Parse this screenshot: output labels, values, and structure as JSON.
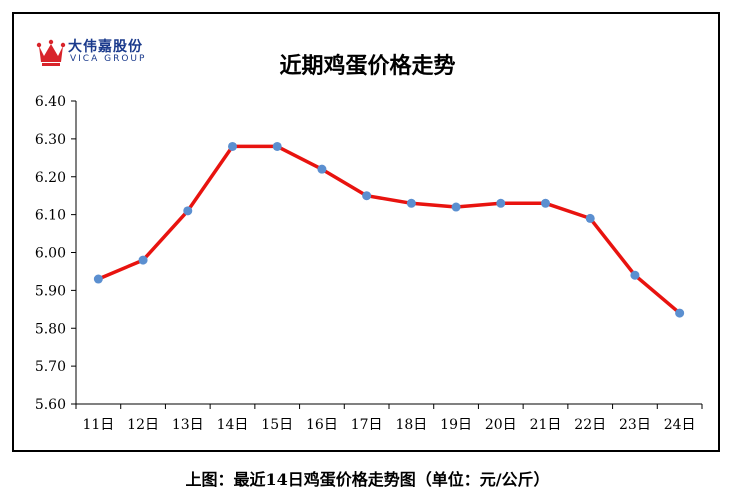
{
  "logo": {
    "name_cn": "大伟嘉股份",
    "name_en": "VICA GROUP"
  },
  "caption": "上图：最近14日鸡蛋价格走势图（单位：元/公斤）",
  "colors": {
    "line": "#e8130f",
    "marker": "#5b8fd0",
    "logo": "#1a3a8c"
  },
  "chart_data": {
    "type": "line",
    "title": "近期鸡蛋价格走势",
    "xlabel": "",
    "ylabel": "",
    "categories": [
      "11日",
      "12日",
      "13日",
      "14日",
      "15日",
      "16日",
      "17日",
      "18日",
      "19日",
      "20日",
      "21日",
      "22日",
      "23日",
      "24日"
    ],
    "series": [
      {
        "values": [
          5.93,
          5.98,
          6.11,
          6.28,
          6.28,
          6.22,
          6.15,
          6.13,
          6.12,
          6.13,
          6.13,
          6.09,
          5.94,
          5.84
        ]
      }
    ],
    "ylim": [
      5.6,
      6.4
    ],
    "yticks": [
      "5.60",
      "5.70",
      "5.80",
      "5.90",
      "6.00",
      "6.10",
      "6.20",
      "6.30",
      "6.40"
    ],
    "grid": false,
    "legend": "none"
  }
}
